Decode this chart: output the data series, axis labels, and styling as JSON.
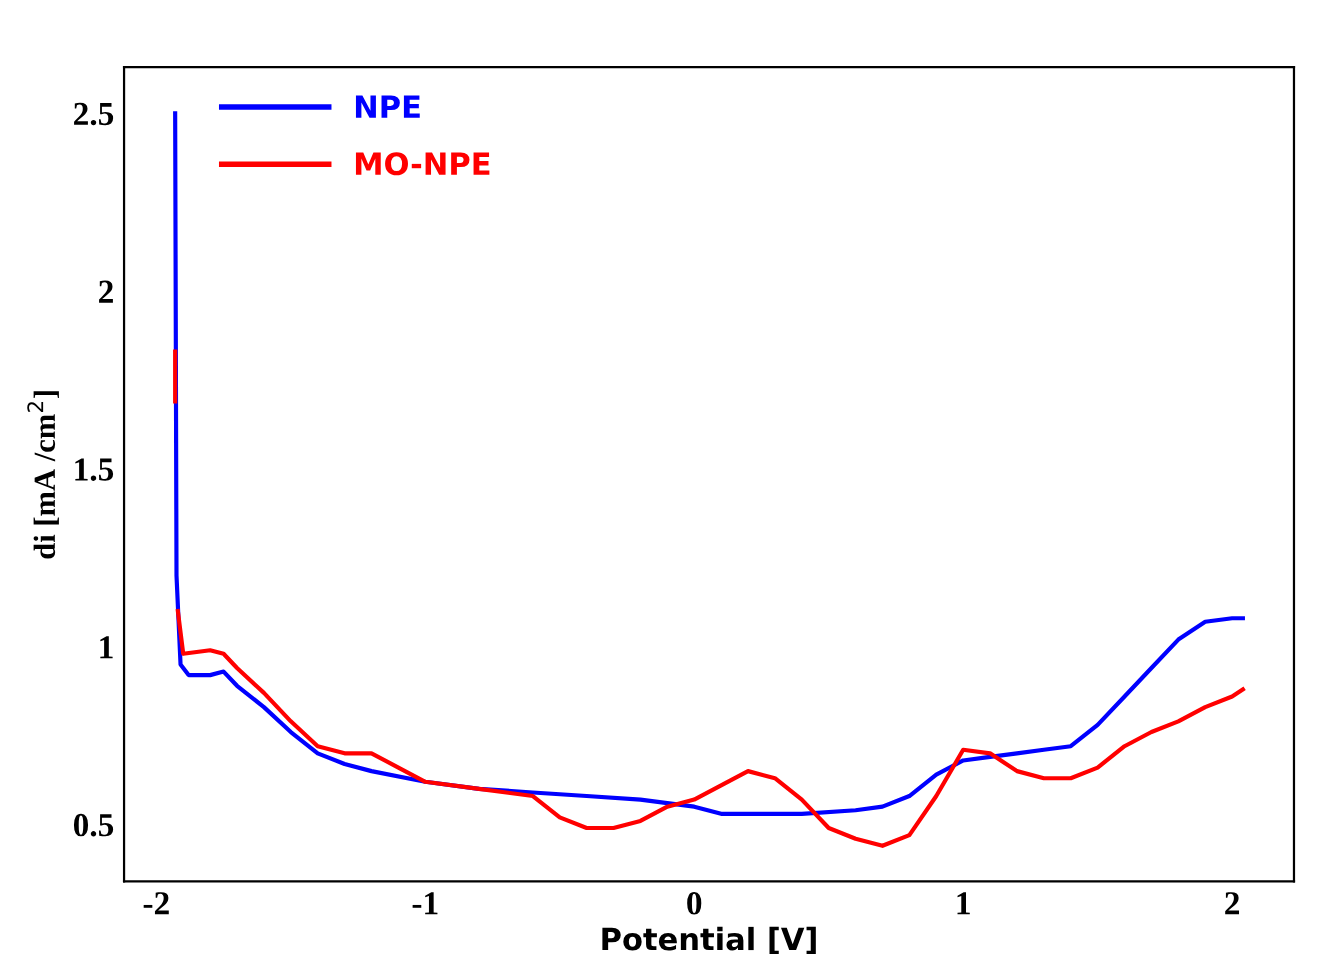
{
  "chart_data": {
    "type": "line",
    "xlabel": "Potential [V]",
    "ylabel": "di [mA /cm$^{2}$]",
    "xlim": [
      -2.12,
      2.23
    ],
    "ylim": [
      0.34,
      2.63
    ],
    "xticks": [
      -2,
      -1,
      0,
      1,
      2
    ],
    "yticks": [
      0.5,
      1,
      1.5,
      2,
      2.5
    ],
    "grid": false,
    "legend": "top left",
    "line_style": "solid",
    "marker": "none",
    "series": [
      {
        "name": "NPE",
        "color": "#0000ff",
        "x": [
          -1.93,
          -1.925,
          -1.91,
          -1.88,
          -1.8,
          -1.75,
          -1.7,
          -1.6,
          -1.5,
          -1.4,
          -1.3,
          -1.2,
          -1.0,
          -0.8,
          -0.6,
          -0.4,
          -0.2,
          0,
          0.1,
          0.2,
          0.4,
          0.6,
          0.7,
          0.8,
          0.9,
          1.0,
          1.1,
          1.2,
          1.3,
          1.4,
          1.5,
          1.6,
          1.7,
          1.8,
          1.9,
          2.0,
          2.04
        ],
        "values": [
          2.5,
          1.2,
          0.95,
          0.92,
          0.92,
          0.93,
          0.89,
          0.83,
          0.76,
          0.7,
          0.67,
          0.65,
          0.62,
          0.6,
          0.59,
          0.58,
          0.57,
          0.55,
          0.53,
          0.53,
          0.53,
          0.54,
          0.55,
          0.58,
          0.64,
          0.68,
          0.69,
          0.7,
          0.71,
          0.72,
          0.78,
          0.86,
          0.94,
          1.02,
          1.07,
          1.08,
          1.08
        ]
      },
      {
        "name": "MO-NPE",
        "color": "#ff0000",
        "x": [
          -1.93,
          -1.93,
          -1.925,
          -1.92,
          -1.9,
          -1.8,
          -1.75,
          -1.7,
          -1.6,
          -1.5,
          -1.4,
          -1.3,
          -1.2,
          -1.1,
          -1.0,
          -0.8,
          -0.6,
          -0.5,
          -0.4,
          -0.3,
          -0.2,
          -0.1,
          0,
          0.1,
          0.2,
          0.3,
          0.4,
          0.5,
          0.6,
          0.7,
          0.8,
          0.9,
          1.0,
          1.1,
          1.2,
          1.3,
          1.4,
          1.5,
          1.6,
          1.7,
          1.8,
          1.9,
          2.0,
          2.04
        ],
        "values": [
          1.83,
          1.69,
          null,
          1.1,
          0.98,
          0.99,
          0.98,
          0.94,
          0.87,
          0.79,
          0.72,
          0.7,
          0.7,
          0.66,
          0.62,
          0.6,
          0.58,
          0.52,
          0.49,
          0.49,
          0.51,
          0.55,
          0.57,
          0.61,
          0.65,
          0.63,
          0.57,
          0.49,
          0.46,
          0.44,
          0.47,
          0.58,
          0.71,
          0.7,
          0.65,
          0.63,
          0.63,
          0.66,
          0.72,
          0.76,
          0.79,
          0.83,
          0.86,
          0.88
        ]
      }
    ]
  }
}
